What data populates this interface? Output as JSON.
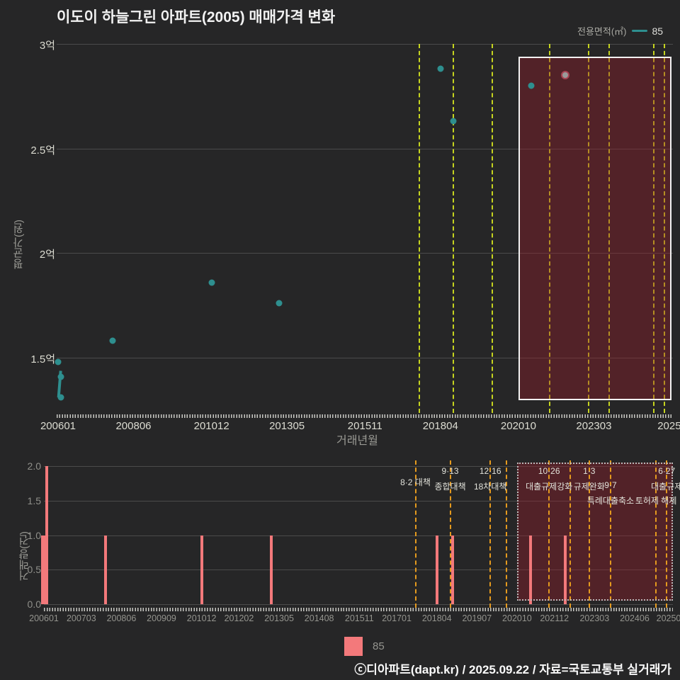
{
  "title": "이도이 하늘그린 아파트(2005) 매매가격 변화",
  "legend": {
    "area_label": "전용면적(㎡)",
    "area_value": "85"
  },
  "legend_bottom": {
    "value": "85"
  },
  "footer": "ⓒ디아파트(dapt.kr) / 2025.09.22 / 자료=국토교통부 실거래가",
  "colors": {
    "background": "#262627",
    "grid": "#4b4b4b",
    "teal": "#2e8f8f",
    "bar_pink": "#f3797b",
    "dash_top": "#c6d41f",
    "dash_bottom": "#e59a1e",
    "highlight_fill": "rgba(155,28,42,0.38)",
    "box_border_top": "#f2f2f2",
    "box_border_bottom": "#b9b9b9",
    "muted_point": "#9a9a9a"
  },
  "chart_data": [
    {
      "type": "scatter",
      "name": "price-history",
      "ylabel": "평균가(원)",
      "xlabel": "거래년월",
      "series_name": "85",
      "yticks": [
        {
          "label": "3억",
          "v": 3.0
        },
        {
          "label": "2.5억",
          "v": 2.5
        },
        {
          "label": "2억",
          "v": 2.0
        },
        {
          "label": "1.5억",
          "v": 1.5
        }
      ],
      "xticks": [
        {
          "label": "200601",
          "month": "200601"
        },
        {
          "label": "200806",
          "month": "200806"
        },
        {
          "label": "201012",
          "month": "201012"
        },
        {
          "label": "201305",
          "month": "201305"
        },
        {
          "label": "201511",
          "month": "201511"
        },
        {
          "label": "201804",
          "month": "201804"
        },
        {
          "label": "202010",
          "month": "202010"
        },
        {
          "label": "202303",
          "month": "202303"
        },
        {
          "label": "2025",
          "month": "202508"
        }
      ],
      "points": [
        {
          "month": "200601",
          "price_eok": 1.48
        },
        {
          "month": "200602",
          "price_eok": 1.41,
          "line": 1
        },
        {
          "month": "200602",
          "price_eok": 1.31,
          "line": 1
        },
        {
          "month": "200710",
          "price_eok": 1.58
        },
        {
          "month": "201012",
          "price_eok": 1.86
        },
        {
          "month": "201302",
          "price_eok": 1.76
        },
        {
          "month": "201804",
          "price_eok": 2.88
        },
        {
          "month": "201809",
          "price_eok": 2.63
        },
        {
          "month": "202103",
          "price_eok": 2.8
        },
        {
          "month": "202204",
          "price_eok": 2.85,
          "muted": true
        }
      ],
      "highlight_from_month": "202010"
    },
    {
      "type": "bar",
      "name": "volume",
      "ylabel": "거래량(건)",
      "yticks": [
        {
          "label": "2.0",
          "v": 2.0
        },
        {
          "label": "1.5",
          "v": 1.5
        },
        {
          "label": "1.0",
          "v": 1.0
        },
        {
          "label": "0.5",
          "v": 0.5
        },
        {
          "label": "0.0",
          "v": 0.0
        }
      ],
      "xticks": [
        {
          "label": "200601",
          "month": "200601"
        },
        {
          "label": "200703",
          "month": "200703"
        },
        {
          "label": "200806",
          "month": "200806"
        },
        {
          "label": "200909",
          "month": "200909"
        },
        {
          "label": "201012",
          "month": "201012"
        },
        {
          "label": "201202",
          "month": "201202"
        },
        {
          "label": "201305",
          "month": "201305"
        },
        {
          "label": "201408",
          "month": "201408"
        },
        {
          "label": "201511",
          "month": "201511"
        },
        {
          "label": "201701",
          "month": "201701"
        },
        {
          "label": "201804",
          "month": "201804"
        },
        {
          "label": "201907",
          "month": "201907"
        },
        {
          "label": "202010",
          "month": "202010"
        },
        {
          "label": "202112",
          "month": "202112"
        },
        {
          "label": "202303",
          "month": "202303"
        },
        {
          "label": "202406",
          "month": "202406"
        },
        {
          "label": "20250",
          "month": "202508"
        }
      ],
      "bars": [
        {
          "month": "200601",
          "count": 1
        },
        {
          "month": "200602",
          "count": 2
        },
        {
          "month": "200712",
          "count": 1
        },
        {
          "month": "201012",
          "count": 1
        },
        {
          "month": "201302",
          "count": 1
        },
        {
          "month": "201804",
          "count": 1
        },
        {
          "month": "201810",
          "count": 1
        },
        {
          "month": "202103",
          "count": 1
        },
        {
          "month": "202204",
          "count": 1
        }
      ],
      "highlight_from_month": "202010"
    }
  ],
  "policy_events": [
    {
      "month": "201708",
      "row1": "",
      "row2": "8·2 대책",
      "row3": "",
      "top": true,
      "single_mid": true
    },
    {
      "month": "201809",
      "row1": "9·13",
      "row2": "종합대책",
      "row3": "",
      "top": true
    },
    {
      "month": "201912",
      "row1": "12·16",
      "row2": "18차대책",
      "row3": "",
      "top": true
    },
    {
      "month": "202006",
      "row1": "",
      "row2": "",
      "row3": "",
      "top": false
    },
    {
      "month": "202110",
      "row1": "10·26",
      "row2": "대출규제강화",
      "row3": "",
      "top": true
    },
    {
      "month": "202206",
      "row1": "",
      "row2": "",
      "row3": "",
      "top": false
    },
    {
      "month": "202301",
      "row1": "1·3",
      "row2": "규제완화",
      "row3": "",
      "top": true
    },
    {
      "month": "202309",
      "row1": "",
      "row2": "9·7",
      "row3": "특례대출축소",
      "top": true
    },
    {
      "month": "202502",
      "row1": "",
      "row2": "",
      "row3": "토허제 해제",
      "top": true
    },
    {
      "month": "202506",
      "row1": "6·27",
      "row2": "대출규제",
      "row3": "",
      "top": true
    }
  ]
}
